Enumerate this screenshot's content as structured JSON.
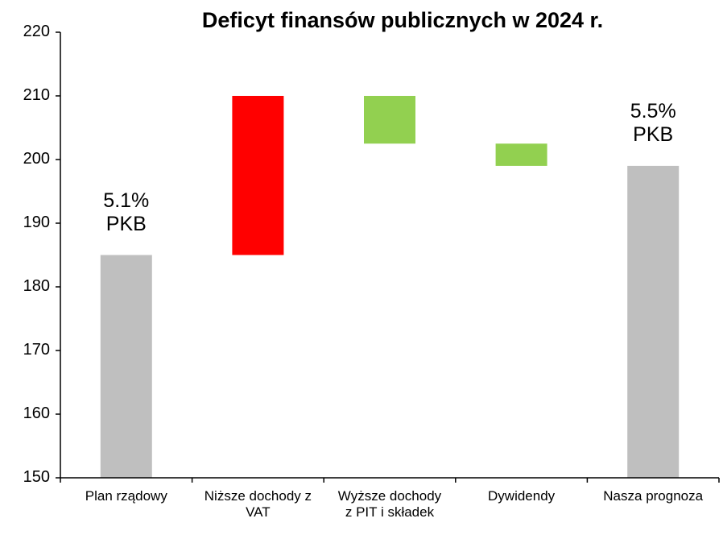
{
  "chart_data": {
    "type": "bar",
    "subtype": "waterfall",
    "title": "Deficyt finansów publicznych w 2024 r.",
    "xlabel": "",
    "ylabel": "",
    "ylim": [
      150,
      220
    ],
    "yticks": [
      150,
      160,
      170,
      180,
      190,
      200,
      210,
      220
    ],
    "grid": false,
    "legend": null,
    "categories": [
      "Plan rządowy",
      "Niższe dochody z VAT",
      "Wyższe dochody z PIT i składek",
      "Dywidendy",
      "Nasza prognoza"
    ],
    "category_labels": [
      "Plan rządowy",
      "Niższe dochody z\nVAT",
      "Wyższe dochody\nz PIT i składek",
      "Dywidendy",
      "Nasza prognoza"
    ],
    "bars": [
      {
        "category": "Plan rządowy",
        "kind": "total",
        "bottom": 150,
        "top": 185,
        "value": 185,
        "color": "#bfbfbf"
      },
      {
        "category": "Niższe dochody z VAT",
        "kind": "increase",
        "bottom": 185,
        "top": 210,
        "value": 25,
        "color": "#ff0000"
      },
      {
        "category": "Wyższe dochody z PIT i składek",
        "kind": "decrease",
        "bottom": 202.5,
        "top": 210,
        "value": -7.5,
        "color": "#92d050"
      },
      {
        "category": "Dywidendy",
        "kind": "decrease",
        "bottom": 199,
        "top": 202.5,
        "value": -3.5,
        "color": "#92d050"
      },
      {
        "category": "Nasza prognoza",
        "kind": "total",
        "bottom": 150,
        "top": 199,
        "value": 199,
        "color": "#bfbfbf"
      }
    ],
    "annotations": [
      {
        "category": "Plan rządowy",
        "line1": "5.1%",
        "line2": "PKB"
      },
      {
        "category": "Nasza prognoza",
        "line1": "5.5%",
        "line2": "PKB"
      }
    ]
  }
}
